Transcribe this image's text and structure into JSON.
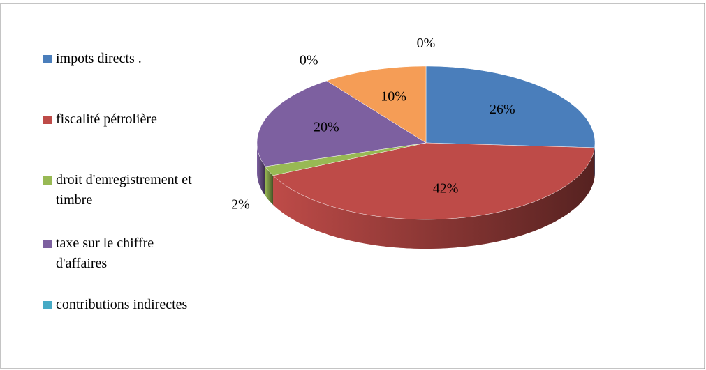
{
  "chart_data": {
    "type": "pie3d",
    "categories": [
      "impots directs .",
      "fiscalité pétrolière",
      "droit d'enregistrement et timbre",
      "taxe sur le chiffre d'affaires",
      "contributions indirectes",
      null,
      null
    ],
    "values": [
      26,
      42,
      2,
      20,
      0,
      10,
      0
    ],
    "value_labels": [
      "26%",
      "42%",
      "2%",
      "20%",
      "0%",
      "10%",
      "0%"
    ],
    "colors": [
      "#4a7ebb",
      "#be4b48",
      "#98b954",
      "#7d60a0",
      "#46aac5",
      "#f59d56",
      "#a5b9dc"
    ],
    "legend": "left"
  }
}
